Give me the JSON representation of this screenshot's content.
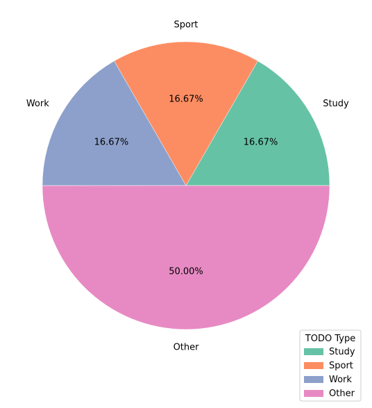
{
  "chart_data": {
    "type": "pie",
    "categories": [
      "Study",
      "Sport",
      "Work",
      "Other"
    ],
    "values": [
      16.67,
      16.67,
      16.67,
      50.0
    ],
    "percent_labels": [
      "16.67%",
      "16.67%",
      "16.67%",
      "50.00%"
    ],
    "colors": [
      "#66c2a5",
      "#fc8d62",
      "#8da0cb",
      "#e78ac3"
    ],
    "start_angle_deg": 0,
    "direction": "counterclockwise",
    "legend": {
      "title": "TODO Type",
      "entries": [
        "Study",
        "Sport",
        "Work",
        "Other"
      ],
      "placement": "bottom-right"
    }
  }
}
